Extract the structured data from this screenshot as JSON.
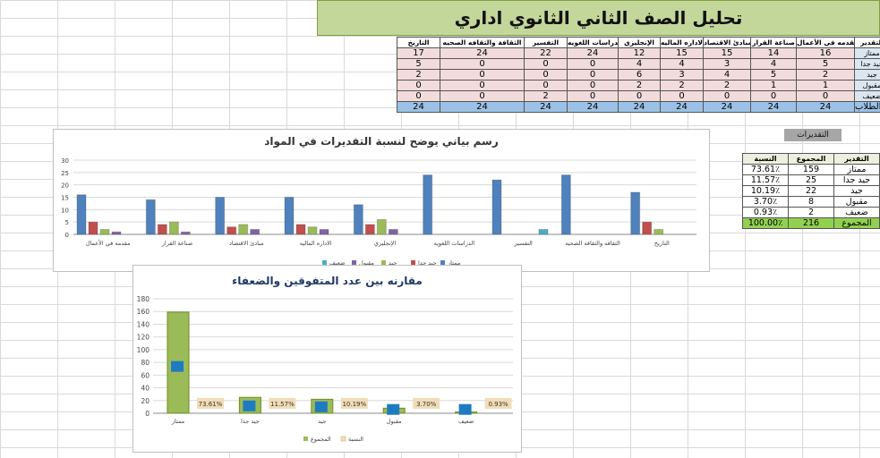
{
  "title": "تحليل الصف الثاني الثانوي اداري",
  "grade_table": {
    "headers": [
      "التاريخ",
      "الثقافة والثقافه الصحيه",
      "التفسير",
      "الدراسات اللغويه",
      "الإنجليزي",
      "الاداره الماليه",
      "مبادئ الاقتصاد",
      "صناعة القرار",
      "مقدمه فى الأعمال",
      "التقدير"
    ],
    "rows": [
      {
        "grade": "ممتاز",
        "values": [
          17,
          24,
          22,
          24,
          12,
          15,
          15,
          14,
          16
        ]
      },
      {
        "grade": "جيد جدا",
        "values": [
          5,
          0,
          0,
          0,
          4,
          4,
          3,
          4,
          5
        ]
      },
      {
        "grade": "جيد",
        "values": [
          2,
          0,
          0,
          0,
          6,
          3,
          4,
          5,
          2
        ]
      },
      {
        "grade": "مقبول",
        "values": [
          0,
          0,
          0,
          0,
          2,
          2,
          2,
          1,
          1
        ]
      },
      {
        "grade": "ضعيف",
        "values": [
          0,
          0,
          2,
          0,
          0,
          0,
          0,
          0,
          0
        ]
      },
      {
        "grade": "عدد الطلاب",
        "values": [
          24,
          24,
          24,
          24,
          24,
          24,
          24,
          24,
          24
        ]
      }
    ]
  },
  "summary": {
    "title": "التقديرات",
    "headers": [
      "النسبة",
      "المجموع",
      "التقدير"
    ],
    "rows": [
      [
        "73.61٪",
        "159",
        "ممتاز"
      ],
      [
        "11.57٪",
        "25",
        "جيد جدا"
      ],
      [
        "10.19٪",
        "22",
        "جيد"
      ],
      [
        "3.70٪",
        "8",
        "مقبول"
      ],
      [
        "0.93٪",
        "2",
        "ضعيف"
      ],
      [
        "100.00٪",
        "216",
        "المجموع"
      ]
    ]
  },
  "colors": {
    "excellent": "#4f81bd",
    "very_good": "#c0504d",
    "good": "#9bbb59",
    "pass": "#8064a2",
    "weak": "#4bacc6",
    "banner": "#c4d79b",
    "total_bar": "#9bbb59",
    "ratio_marker": "#1f7bc1",
    "ratio_label_bg": "#f2dcb7"
  },
  "chart_data": [
    {
      "type": "bar",
      "title": "رسم بياني يوضح لنسبة التقديرات في المواد",
      "categories": [
        "مقدمه في الأعمال",
        "صناعة القرار",
        "مبادئ الاقتصاد",
        "الاداره الماليه",
        "الإنجليزي",
        "الدراسات اللغويه",
        "التفسير",
        "الثقافه والثقافه الصحيه",
        "التاريخ"
      ],
      "series": [
        {
          "name": "ممتاز",
          "values": [
            16,
            14,
            15,
            15,
            12,
            24,
            22,
            24,
            17
          ]
        },
        {
          "name": "جيد جدا",
          "values": [
            5,
            4,
            3,
            4,
            4,
            0,
            0,
            0,
            5
          ]
        },
        {
          "name": "جيد",
          "values": [
            2,
            5,
            4,
            3,
            6,
            0,
            0,
            0,
            2
          ]
        },
        {
          "name": "مقبول",
          "values": [
            1,
            1,
            2,
            2,
            2,
            0,
            0,
            0,
            0
          ]
        },
        {
          "name": "ضعيف",
          "values": [
            0,
            0,
            0,
            0,
            0,
            0,
            2,
            0,
            0
          ]
        }
      ],
      "ylim": [
        0,
        30
      ],
      "yticks": [
        0,
        5,
        10,
        15,
        20,
        25,
        30
      ],
      "legend": "bottom"
    },
    {
      "type": "bar",
      "title": "مقارنه بين عدد المتفوقين والضعفاء",
      "categories": [
        "ممتاز",
        "جيد جدا",
        "جيد",
        "مقبول",
        "ضعيف"
      ],
      "series": [
        {
          "name": "المجموع",
          "values": [
            159,
            25,
            22,
            8,
            2
          ]
        },
        {
          "name": "النسبة",
          "values": [
            73.61,
            11.57,
            10.19,
            3.7,
            0.93
          ],
          "labels": [
            "73.61%",
            "11.57%",
            "10.19%",
            "3.70%",
            "0.93%"
          ]
        }
      ],
      "ylim": [
        0,
        180
      ],
      "yticks": [
        0,
        20,
        40,
        60,
        80,
        100,
        120,
        140,
        160,
        180
      ],
      "legend": "bottom"
    }
  ]
}
